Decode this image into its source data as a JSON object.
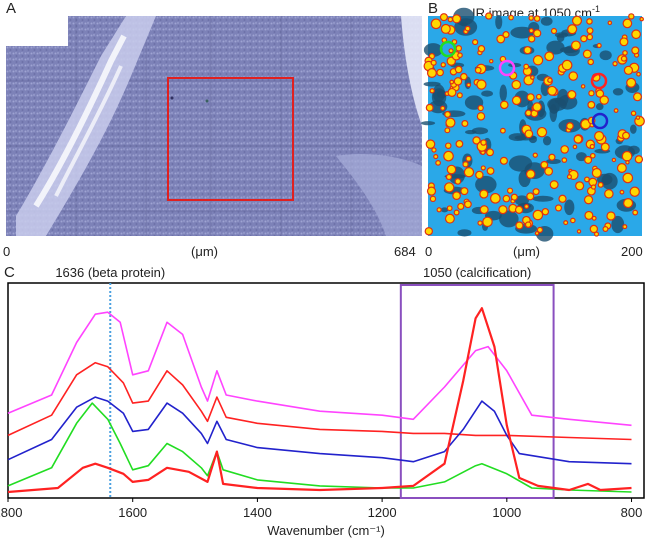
{
  "panels": {
    "a": {
      "letter": "A",
      "axis_start": "0",
      "axis_unit": "(μm)",
      "axis_end": "684"
    },
    "b": {
      "letter": "B",
      "title_text": "IR image at 1050 cm",
      "title_sup": "-1",
      "axis_start": "0",
      "axis_unit": "(μm)",
      "axis_end": "200"
    },
    "c": {
      "letter": "C"
    }
  },
  "colors": {
    "magenta": "#ff44ff",
    "red": "#ff2222",
    "blue": "#2222cc",
    "green": "#22dd22",
    "roi_box": "#e02020",
    "purple_box": "#8a4fbf",
    "dotted_line": "#4aa0e0",
    "ir_background": "#2aa8e8",
    "ir_dark": "#1a4f70",
    "ir_hot": "#ffd700"
  },
  "chart_data": {
    "type": "line",
    "xlabel": "Wavenumber (cm⁻¹)",
    "xlim": [
      1800,
      780
    ],
    "x_reversed": true,
    "ticks": [
      {
        "value": 1800,
        "label": "1800"
      },
      {
        "value": 1600,
        "label": "1600"
      },
      {
        "value": 1400,
        "label": "1400"
      },
      {
        "value": 1200,
        "label": "1200"
      },
      {
        "value": 1000,
        "label": "1000"
      },
      {
        "value": 800,
        "label": "800"
      }
    ],
    "annotations": [
      {
        "text": "1636 (beta protein)",
        "x": 1636,
        "style": "dotted-line"
      },
      {
        "text": "1050 (calcification)",
        "x_range": [
          1170,
          925
        ],
        "style": "box"
      }
    ],
    "series": [
      {
        "color": "magenta",
        "points": [
          [
            1800,
            0.39
          ],
          [
            1730,
            0.48
          ],
          [
            1690,
            0.74
          ],
          [
            1660,
            0.88
          ],
          [
            1640,
            0.89
          ],
          [
            1620,
            0.84
          ],
          [
            1600,
            0.58
          ],
          [
            1575,
            0.6
          ],
          [
            1545,
            0.84
          ],
          [
            1520,
            0.78
          ],
          [
            1490,
            0.52
          ],
          [
            1480,
            0.45
          ],
          [
            1465,
            0.6
          ],
          [
            1450,
            0.48
          ],
          [
            1400,
            0.45
          ],
          [
            1300,
            0.4
          ],
          [
            1200,
            0.38
          ],
          [
            1150,
            0.36
          ],
          [
            1100,
            0.52
          ],
          [
            1050,
            0.7
          ],
          [
            1030,
            0.72
          ],
          [
            1000,
            0.6
          ],
          [
            960,
            0.38
          ],
          [
            900,
            0.36
          ],
          [
            800,
            0.33
          ]
        ]
      },
      {
        "color": "red",
        "points": [
          [
            1800,
            0.28
          ],
          [
            1730,
            0.38
          ],
          [
            1690,
            0.58
          ],
          [
            1660,
            0.64
          ],
          [
            1640,
            0.62
          ],
          [
            1615,
            0.54
          ],
          [
            1600,
            0.44
          ],
          [
            1575,
            0.45
          ],
          [
            1545,
            0.6
          ],
          [
            1520,
            0.53
          ],
          [
            1490,
            0.4
          ],
          [
            1480,
            0.35
          ],
          [
            1465,
            0.47
          ],
          [
            1450,
            0.37
          ],
          [
            1400,
            0.34
          ],
          [
            1300,
            0.31
          ],
          [
            1200,
            0.3
          ],
          [
            1150,
            0.29
          ],
          [
            1100,
            0.29
          ],
          [
            1050,
            0.28
          ],
          [
            1000,
            0.28
          ],
          [
            900,
            0.27
          ],
          [
            800,
            0.26
          ]
        ]
      },
      {
        "color": "blue",
        "points": [
          [
            1800,
            0.16
          ],
          [
            1730,
            0.26
          ],
          [
            1690,
            0.42
          ],
          [
            1660,
            0.47
          ],
          [
            1640,
            0.45
          ],
          [
            1615,
            0.39
          ],
          [
            1600,
            0.3
          ],
          [
            1575,
            0.31
          ],
          [
            1545,
            0.44
          ],
          [
            1520,
            0.39
          ],
          [
            1490,
            0.29
          ],
          [
            1480,
            0.24
          ],
          [
            1465,
            0.35
          ],
          [
            1450,
            0.26
          ],
          [
            1400,
            0.22
          ],
          [
            1300,
            0.19
          ],
          [
            1200,
            0.17
          ],
          [
            1150,
            0.15
          ],
          [
            1100,
            0.2
          ],
          [
            1070,
            0.31
          ],
          [
            1040,
            0.45
          ],
          [
            1020,
            0.4
          ],
          [
            1000,
            0.28
          ],
          [
            980,
            0.19
          ],
          [
            900,
            0.15
          ],
          [
            800,
            0.14
          ]
        ]
      },
      {
        "color": "green",
        "points": [
          [
            1800,
            0.03
          ],
          [
            1730,
            0.12
          ],
          [
            1690,
            0.34
          ],
          [
            1665,
            0.44
          ],
          [
            1640,
            0.36
          ],
          [
            1620,
            0.24
          ],
          [
            1600,
            0.11
          ],
          [
            1575,
            0.13
          ],
          [
            1545,
            0.24
          ],
          [
            1520,
            0.2
          ],
          [
            1490,
            0.12
          ],
          [
            1480,
            0.08
          ],
          [
            1465,
            0.2
          ],
          [
            1455,
            0.11
          ],
          [
            1400,
            0.06
          ],
          [
            1300,
            0.03
          ],
          [
            1200,
            0.02
          ],
          [
            1150,
            0.02
          ],
          [
            1100,
            0.05
          ],
          [
            1050,
            0.13
          ],
          [
            1040,
            0.14
          ],
          [
            1000,
            0.09
          ],
          [
            960,
            0.02
          ],
          [
            900,
            0.01
          ],
          [
            800,
            0.0
          ]
        ]
      },
      {
        "color": "red",
        "points": [
          [
            1800,
            0.0
          ],
          [
            1720,
            0.02
          ],
          [
            1680,
            0.12
          ],
          [
            1660,
            0.14
          ],
          [
            1640,
            0.12
          ],
          [
            1615,
            0.09
          ],
          [
            1600,
            0.05
          ],
          [
            1575,
            0.06
          ],
          [
            1545,
            0.12
          ],
          [
            1510,
            0.1
          ],
          [
            1480,
            0.05
          ],
          [
            1465,
            0.2
          ],
          [
            1455,
            0.04
          ],
          [
            1400,
            0.02
          ],
          [
            1300,
            0.01
          ],
          [
            1200,
            0.02
          ],
          [
            1150,
            0.03
          ],
          [
            1100,
            0.14
          ],
          [
            1070,
            0.55
          ],
          [
            1050,
            0.86
          ],
          [
            1040,
            0.91
          ],
          [
            1020,
            0.72
          ],
          [
            1000,
            0.33
          ],
          [
            980,
            0.07
          ],
          [
            950,
            0.03
          ],
          [
            900,
            0.01
          ],
          [
            870,
            0.04
          ],
          [
            850,
            0.01
          ],
          [
            800,
            0.02
          ]
        ]
      }
    ]
  }
}
